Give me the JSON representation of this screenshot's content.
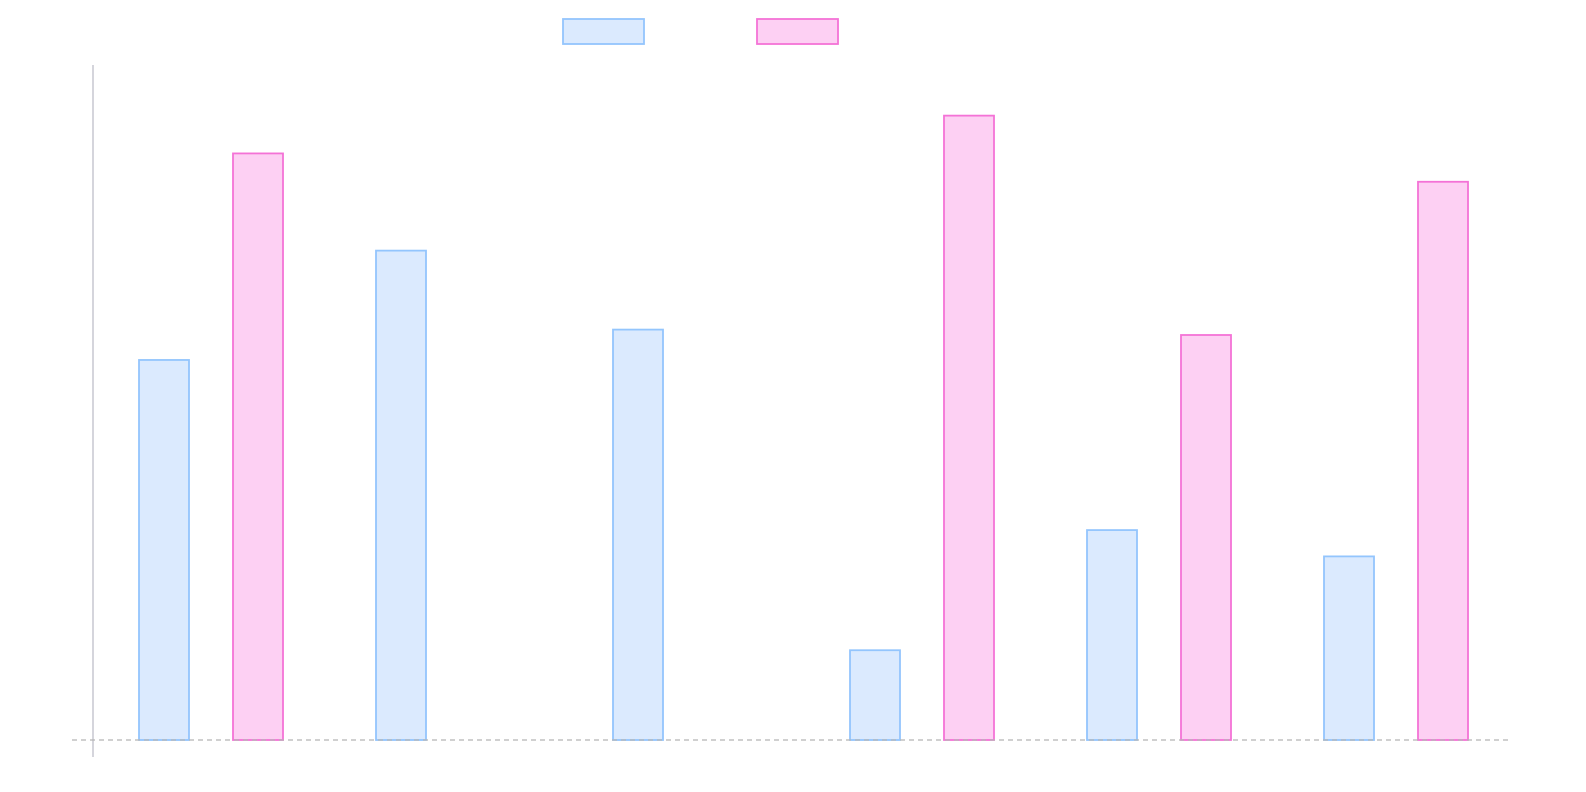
{
  "chart_data": {
    "type": "bar",
    "categories": [
      "",
      "",
      "",
      "",
      "",
      ""
    ],
    "series": [
      {
        "name": "",
        "values": [
          5.63,
          7.25,
          6.08,
          1.33,
          3.11,
          2.72
        ],
        "fill": "#dbeafe",
        "stroke": "#93c5fd"
      },
      {
        "name": "",
        "values": [
          8.69,
          0,
          0,
          9.25,
          6.0,
          8.27
        ],
        "fill": "#fdd0f3",
        "stroke": "#f472d6"
      }
    ],
    "title": "",
    "xlabel": "",
    "ylabel": "",
    "ylim": [
      0,
      10
    ],
    "grid": false,
    "legend": "top-center",
    "baseline_style": "dashed"
  }
}
